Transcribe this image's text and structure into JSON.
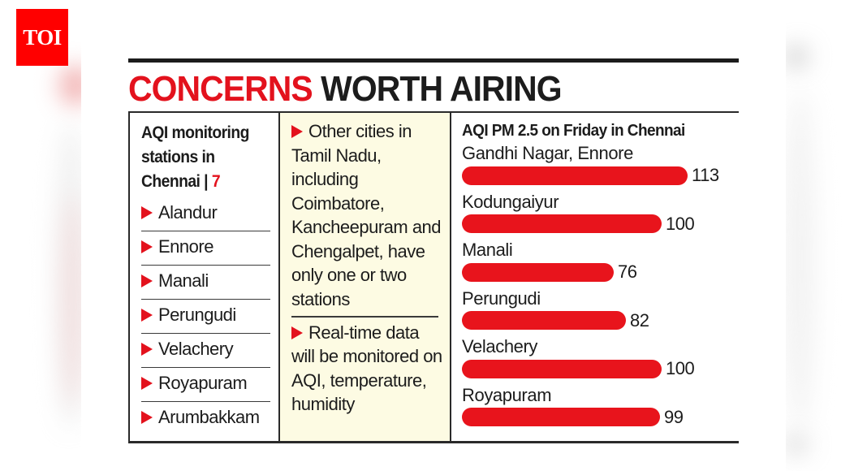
{
  "logo": {
    "text": "TOI",
    "color": "#ff0000"
  },
  "graphic": {
    "title_red": "CONCERNS",
    "title_black": "WORTH AIRING",
    "accent_color": "#e3121d",
    "stations_panel": {
      "heading_line1": "AQI monitoring",
      "heading_line2": "stations in",
      "heading_line3": "Chennai | ",
      "count": "7",
      "stations": [
        "Alandur",
        "Ennore",
        "Manali",
        "Perungudi",
        "Velachery",
        "Royapuram",
        "Arumbakkam"
      ]
    },
    "notes_panel": {
      "background": "#fdfbe3",
      "notes": [
        "Other cities in Tamil Nadu, including Coimbatore, Kancheepuram and Chengalpet, have only one or two stations",
        "Real-time data will be monitored on AQI, temperature, humidity"
      ]
    }
  },
  "chart_data": {
    "type": "bar",
    "orientation": "horizontal",
    "title": "AQI PM 2.5 on Friday in Chennai",
    "categories": [
      "Gandhi Nagar, Ennore",
      "Kodungaiyur",
      "Manali",
      "Perungudi",
      "Velachery",
      "Royapuram"
    ],
    "values": [
      113,
      100,
      76,
      82,
      100,
      99
    ],
    "xlabel": "",
    "ylabel": "",
    "bar_color": "#e8141c",
    "data_labels": true,
    "grid": false,
    "legend": null
  }
}
